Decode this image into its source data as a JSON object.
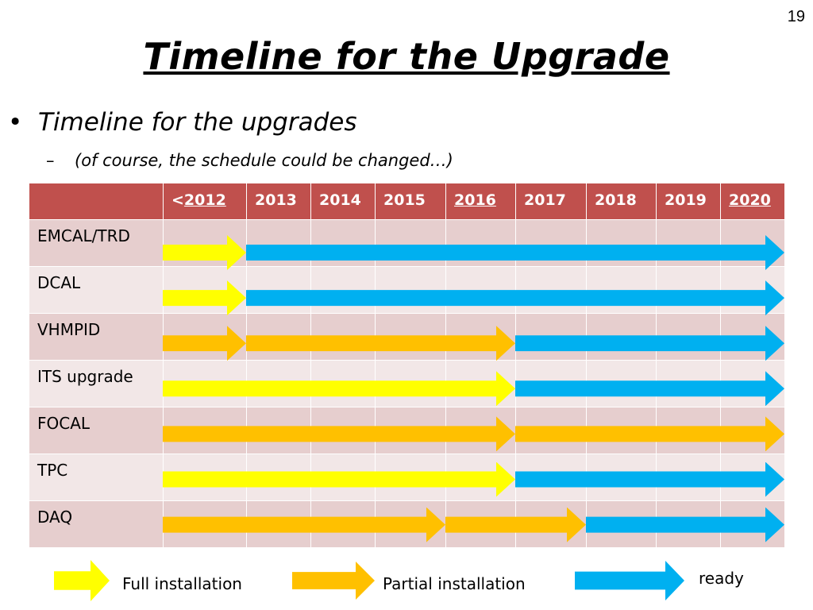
{
  "slide": {
    "page_number": "19",
    "title": "Timeline for the Upgrade",
    "bullet": "Timeline for the upgrades",
    "sub_bullet": "(of course, the schedule could be changed…)"
  },
  "table": {
    "year_headers": [
      {
        "prefix": "<",
        "label": "2012"
      },
      {
        "prefix": "",
        "label": "2013"
      },
      {
        "prefix": "",
        "label": "2014"
      },
      {
        "prefix": "",
        "label": "2015"
      },
      {
        "prefix": "",
        "label": "2016"
      },
      {
        "prefix": "",
        "label": "2017"
      },
      {
        "prefix": "",
        "label": "2018"
      },
      {
        "prefix": "",
        "label": "2019"
      },
      {
        "prefix": "",
        "label": "2020"
      }
    ],
    "rows": [
      {
        "label": "EMCAL/TRD"
      },
      {
        "label": "DCAL"
      },
      {
        "label": "VHMPID"
      },
      {
        "label": "ITS upgrade"
      },
      {
        "label": "FOCAL"
      },
      {
        "label": "TPC"
      },
      {
        "label": "DAQ"
      }
    ]
  },
  "timeline_segments": [
    {
      "row": "EMCAL/TRD",
      "from": "<2012",
      "to": "2013",
      "status": "full"
    },
    {
      "row": "EMCAL/TRD",
      "from": "2013",
      "to": "2020",
      "status": "ready"
    },
    {
      "row": "DCAL",
      "from": "<2012",
      "to": "2013",
      "status": "full"
    },
    {
      "row": "DCAL",
      "from": "2013",
      "to": "2020",
      "status": "ready"
    },
    {
      "row": "VHMPID",
      "from": "<2012",
      "to": "2013",
      "status": "partial"
    },
    {
      "row": "VHMPID",
      "from": "2013",
      "to": "2017",
      "status": "partial"
    },
    {
      "row": "VHMPID",
      "from": "2017",
      "to": "2020",
      "status": "ready"
    },
    {
      "row": "ITS upgrade",
      "from": "<2012",
      "to": "2017",
      "status": "full"
    },
    {
      "row": "ITS upgrade",
      "from": "2017",
      "to": "2020",
      "status": "ready"
    },
    {
      "row": "FOCAL",
      "from": "<2012",
      "to": "2017",
      "status": "partial"
    },
    {
      "row": "FOCAL",
      "from": "2017",
      "to": "2020",
      "status": "partial"
    },
    {
      "row": "TPC",
      "from": "<2012",
      "to": "2017",
      "status": "full"
    },
    {
      "row": "TPC",
      "from": "2017",
      "to": "2020",
      "status": "ready"
    },
    {
      "row": "DAQ",
      "from": "<2012",
      "to": "2016",
      "status": "partial"
    },
    {
      "row": "DAQ",
      "from": "2016",
      "to": "2018",
      "status": "partial"
    },
    {
      "row": "DAQ",
      "from": "2018",
      "to": "2020",
      "status": "ready"
    }
  ],
  "legend": {
    "full": {
      "label": "Full installation",
      "color": "#ffff00"
    },
    "partial": {
      "label": "Partial installation",
      "color": "#ffc000"
    },
    "ready": {
      "label": "ready",
      "color": "#00b0f0"
    }
  },
  "colors": {
    "header_bg": "#c0504d",
    "row_odd_bg": "#e6cece",
    "row_even_bg": "#f2e7e7"
  }
}
